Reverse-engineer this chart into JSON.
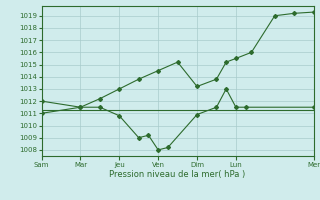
{
  "background_color": "#d0ecec",
  "grid_color": "#a8cccc",
  "line_color": "#2d6b2d",
  "title": "Pression niveau de la mer( hPa )",
  "ylim": [
    1007.5,
    1019.8
  ],
  "yticks": [
    1008,
    1009,
    1010,
    1011,
    1012,
    1013,
    1014,
    1015,
    1016,
    1017,
    1018,
    1019
  ],
  "xlim": [
    0,
    14
  ],
  "xtick_major_pos": [
    0,
    2,
    4,
    6,
    8,
    10,
    14
  ],
  "xtick_major_labels": [
    "Sam",
    "Mar",
    "Jeu",
    "Ven",
    "Dim",
    "Lun",
    "Mer"
  ],
  "series_flat": {
    "x": [
      0,
      14
    ],
    "y": [
      1011.3,
      1011.3
    ]
  },
  "series_dip": {
    "x": [
      0,
      2,
      3,
      4,
      5,
      5.5,
      6,
      6.5,
      8,
      9,
      9.5,
      10,
      10.5,
      14
    ],
    "y": [
      1012,
      1011.5,
      1011.5,
      1010.8,
      1009.0,
      1009.2,
      1008.0,
      1008.2,
      1010.9,
      1011.5,
      1013.0,
      1011.5,
      1011.5,
      1011.5
    ]
  },
  "series_rise": {
    "x": [
      0,
      2,
      3,
      4,
      5,
      6,
      7,
      8,
      9,
      9.5,
      10,
      10.8,
      12,
      13,
      14
    ],
    "y": [
      1011,
      1011.5,
      1012.2,
      1013.0,
      1013.8,
      1014.5,
      1015.2,
      1013.2,
      1013.8,
      1015.2,
      1015.5,
      1016.0,
      1019.0,
      1019.2,
      1019.3
    ]
  }
}
